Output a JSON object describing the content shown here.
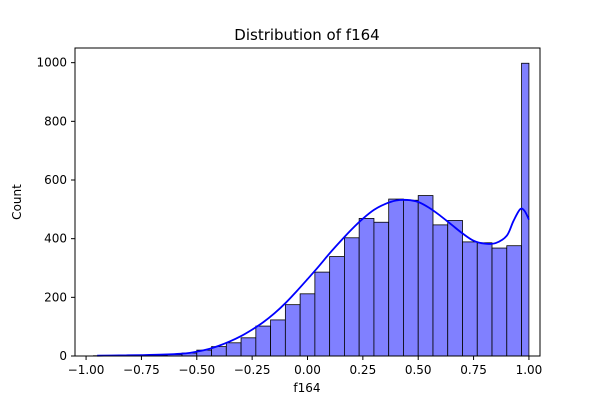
{
  "chart_data": {
    "type": "bar",
    "title": "Distribution of f164",
    "xlabel": "f164",
    "ylabel": "Count",
    "xlim": [
      -1.05,
      1.05
    ],
    "ylim": [
      0,
      1050
    ],
    "xticks": [
      -1.0,
      -0.75,
      -0.5,
      -0.25,
      0.0,
      0.25,
      0.5,
      0.75,
      1.0
    ],
    "xtick_labels": [
      "−1.00",
      "−0.75",
      "−0.50",
      "−0.25",
      "0.00",
      "0.25",
      "0.50",
      "0.75",
      "1.00"
    ],
    "yticks": [
      0,
      200,
      400,
      600,
      800,
      1000
    ],
    "ytick_labels": [
      "0",
      "200",
      "400",
      "600",
      "800",
      "1000"
    ],
    "grid": false,
    "bin_edges": [
      -0.9667,
      -0.9,
      -0.8333,
      -0.7667,
      -0.7,
      -0.6333,
      -0.5667,
      -0.5,
      -0.4333,
      -0.3667,
      -0.3,
      -0.2333,
      -0.1667,
      -0.1,
      -0.0333,
      0.0333,
      0.1,
      0.1667,
      0.2333,
      0.3,
      0.3667,
      0.4333,
      0.5,
      0.5667,
      0.6333,
      0.7,
      0.7667,
      0.8333,
      0.9,
      0.9667,
      1.0
    ],
    "counts": [
      1,
      1,
      1,
      2,
      3,
      5,
      10,
      20,
      32,
      45,
      62,
      102,
      123,
      175,
      212,
      286,
      339,
      403,
      469,
      456,
      535,
      531,
      547,
      447,
      462,
      389,
      386,
      368,
      376,
      998
    ],
    "bar_color": "#8080ff",
    "bar_edge_color": "#000000",
    "kde": {
      "color": "#0000ff",
      "x": [
        -0.95,
        -0.85,
        -0.75,
        -0.65,
        -0.55,
        -0.5,
        -0.45,
        -0.4,
        -0.35,
        -0.3,
        -0.25,
        -0.2,
        -0.15,
        -0.1,
        -0.05,
        0.0,
        0.05,
        0.1,
        0.15,
        0.2,
        0.25,
        0.3,
        0.35,
        0.4,
        0.45,
        0.5,
        0.55,
        0.6,
        0.65,
        0.7,
        0.75,
        0.8,
        0.85,
        0.9,
        0.93,
        0.96,
        0.98,
        1.0
      ],
      "y": [
        1,
        2,
        3,
        5,
        9,
        15,
        23,
        35,
        50,
        68,
        90,
        115,
        145,
        180,
        220,
        262,
        305,
        350,
        392,
        432,
        468,
        498,
        518,
        530,
        532,
        525,
        505,
        478,
        448,
        418,
        393,
        383,
        385,
        410,
        460,
        500,
        495,
        465
      ]
    }
  }
}
